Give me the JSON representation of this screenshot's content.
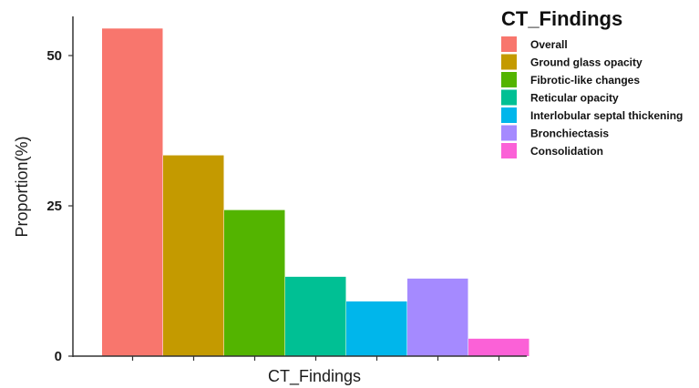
{
  "chart_data": {
    "type": "bar",
    "title": "",
    "xlabel": "CT_Findings",
    "ylabel": "Proportion(%)",
    "ylim": [
      0,
      55
    ],
    "yticks": [
      "0",
      "25",
      "50"
    ],
    "categories": [
      "Overall",
      "Ground glass opacity",
      "Fibrotic-like changes",
      "Reticular opacity",
      "Interlobular septal thickening",
      "Bronchiectasis",
      "Consolidation"
    ],
    "values": [
      54.5,
      33.4,
      24.3,
      13.2,
      9.1,
      12.9,
      2.9
    ],
    "colors": [
      "#F8766D",
      "#C49A00",
      "#53B400",
      "#00C094",
      "#00B6EB",
      "#A58AFF",
      "#FB61D7"
    ],
    "grid": false,
    "legend": {
      "title": "CT_Findings",
      "position": "top-right"
    }
  }
}
